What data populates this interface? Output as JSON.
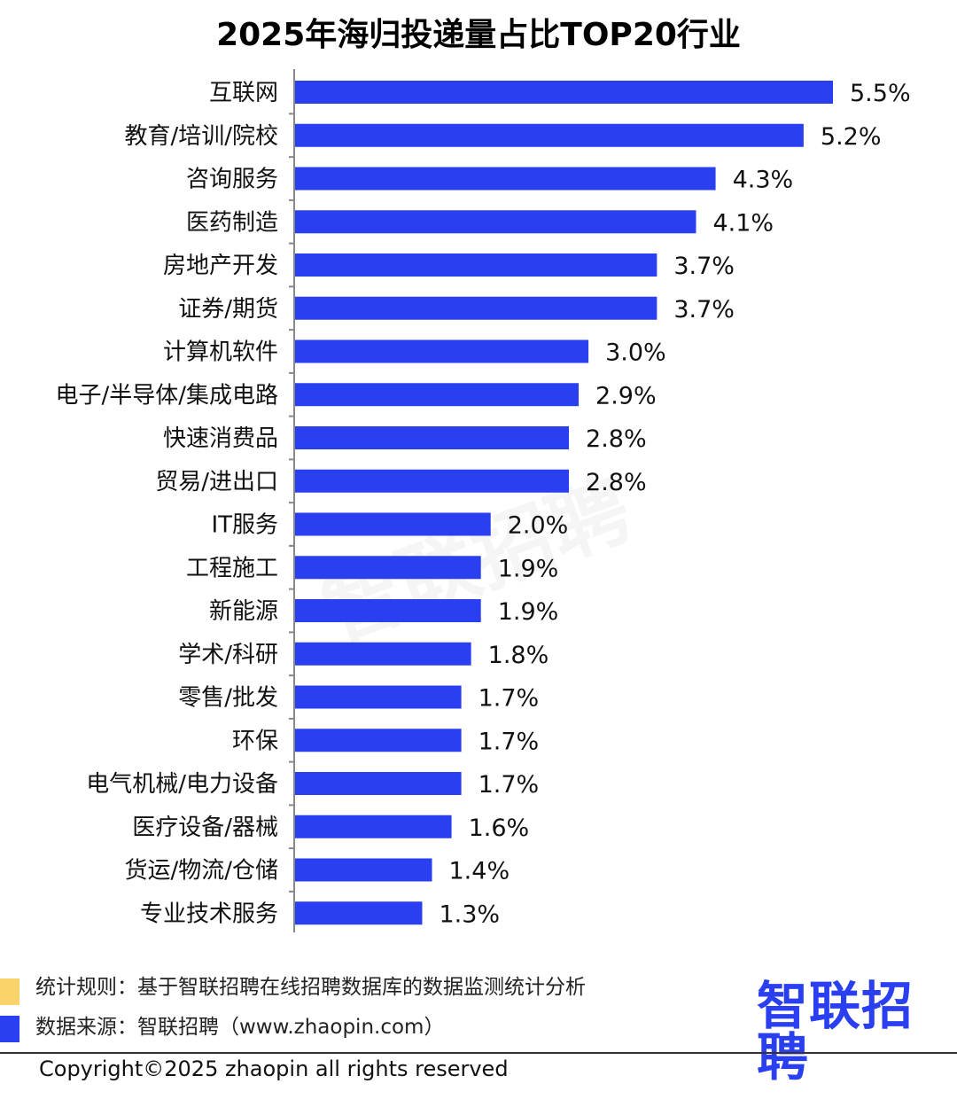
{
  "chart_data": {
    "type": "bar",
    "orientation": "horizontal",
    "title": "2025年海归投递量占比TOP20行业",
    "categories": [
      "互联网",
      "教育/培训/院校",
      "咨询服务",
      "医药制造",
      "房地产开发",
      "证券/期货",
      "计算机软件",
      "电子/半导体/集成电路",
      "快速消费品",
      "贸易/进出口",
      "IT服务",
      "工程施工",
      "新能源",
      "学术/科研",
      "零售/批发",
      "环保",
      "电气机械/电力设备",
      "医疗设备/器械",
      "货运/物流/仓储",
      "专业技术服务"
    ],
    "values": [
      5.5,
      5.2,
      4.3,
      4.1,
      3.7,
      3.7,
      3.0,
      2.9,
      2.8,
      2.8,
      2.0,
      1.9,
      1.9,
      1.8,
      1.7,
      1.7,
      1.7,
      1.6,
      1.4,
      1.3
    ],
    "value_labels": [
      "5.5%",
      "5.2%",
      "4.3%",
      "4.1%",
      "3.7%",
      "3.7%",
      "3.0%",
      "2.9%",
      "2.8%",
      "2.8%",
      "2.0%",
      "1.9%",
      "1.9%",
      "1.8%",
      "1.7%",
      "1.7%",
      "1.7%",
      "1.6%",
      "1.4%",
      "1.3%"
    ],
    "unit": "%",
    "grid": false,
    "bar_color": "#2a3ff0"
  },
  "footer": {
    "rule": "统计规则：基于智联招聘在线招聘数据库的数据监测统计分析",
    "source": "数据来源：智联招聘（www.zhaopin.com）",
    "logo": "智联招聘",
    "watermark": "智联招聘",
    "copyright": "Copyright©2025 zhaopin all rights reserved"
  },
  "colors": {
    "accent": "#2a3ff0",
    "legend_yellow": "#f8d46a"
  }
}
